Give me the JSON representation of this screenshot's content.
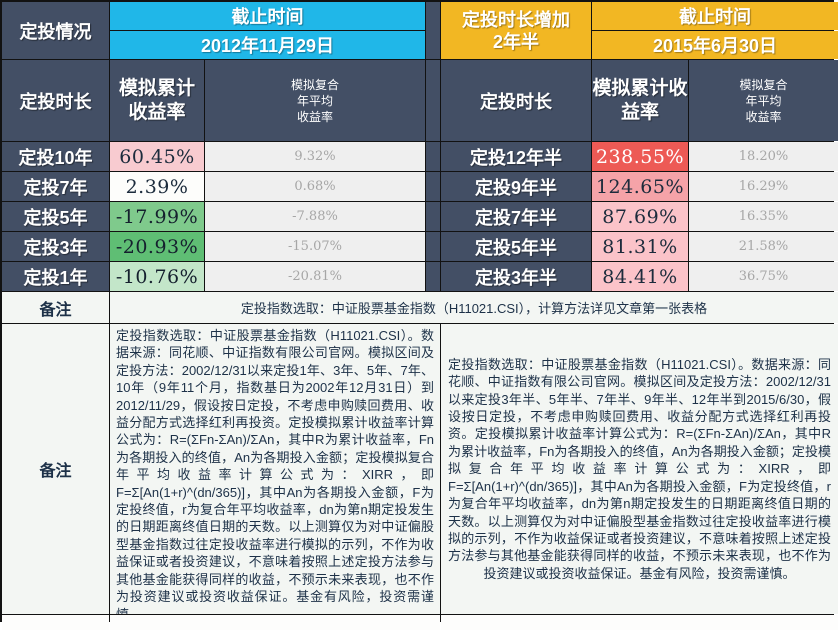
{
  "left_table": {
    "situation_label": "定投情况",
    "deadline_label": "截止时间",
    "deadline_value": "2012年11月29日",
    "duration_header": "定投时长",
    "cum_return_header": "模拟累计收益率",
    "compound_header": "模拟复合\n年平均\n收益率",
    "rows": [
      {
        "duration": "定投10年",
        "cum": "60.45%",
        "annual": "9.32%",
        "cum_bg": "#F8CBD0",
        "cum_color": "#1C2B3C"
      },
      {
        "duration": "定投7年",
        "cum": "2.39%",
        "annual": "0.68%",
        "cum_bg": "#FDFDFB",
        "cum_color": "#1C2B3C"
      },
      {
        "duration": "定投5年",
        "cum": "-17.99%",
        "annual": "-7.88%",
        "cum_bg": "#7FCA8C",
        "cum_color": "#15202E"
      },
      {
        "duration": "定投3年",
        "cum": "-20.93%",
        "annual": "-15.07%",
        "cum_bg": "#5FBE74",
        "cum_color": "#15202E"
      },
      {
        "duration": "定投1年",
        "cum": "-10.76%",
        "annual": "-20.81%",
        "cum_bg": "#C3E6C9",
        "cum_color": "#15202E"
      }
    ]
  },
  "right_table": {
    "increase_label": "定投时长增加\n2年半",
    "deadline_label": "截止时间",
    "deadline_value": "2015年6月30日",
    "duration_header": "定投时长",
    "cum_return_header": "模拟累计收益率",
    "compound_header": "模拟复合\n年平均\n收益率",
    "rows": [
      {
        "duration": "定投12年半",
        "cum": "238.55%",
        "annual": "18.20%",
        "cum_bg": "#ED5A55",
        "cum_color": "#FFFFFF"
      },
      {
        "duration": "定投9年半",
        "cum": "124.65%",
        "annual": "16.29%",
        "cum_bg": "#F5A3A8",
        "cum_color": "#1C2B3C"
      },
      {
        "duration": "定投7年半",
        "cum": "87.69%",
        "annual": "16.35%",
        "cum_bg": "#FBC3C9",
        "cum_color": "#1C2B3C"
      },
      {
        "duration": "定投5年半",
        "cum": "81.31%",
        "annual": "21.58%",
        "cum_bg": "#FBC3C9",
        "cum_color": "#1C2B3C"
      },
      {
        "duration": "定投3年半",
        "cum": "84.41%",
        "annual": "36.75%",
        "cum_bg": "#FBC3C9",
        "cum_color": "#1C2B3C"
      }
    ]
  },
  "notes": {
    "label": "备注",
    "summary": "定投指数选取：中证股票基金指数（H11021.CSI），计算方法详见文章第一张表格",
    "left_detail": "定投指数选取：中证股票基金指数（H11021.CSI）。数据来源：同花顺、中证指数有限公司官网。模拟区间及定投方法：2002/12/31以来定投1年、3年、5年、7年、10年（9年11个月，指数基日为2002年12月31日）到2012/11/29，假设按日定投，不考虑申购赎回费用、收益分配方式选择红利再投资。定投模拟累计收益率计算公式为：R=(ΣFn-ΣAn)/ΣAn，其中R为累计收益率，Fn为各期投入的终值，An为各期投入金额；定投模拟复合年平均收益率计算公式为：XIRR，即F=Σ[An(1+r)^(dn/365)]，其中An为各期投入金额，F为定投终值，r为复合年平均收益率，dn为第n期定投发生的日期距离终值日期的天数。以上测算仅为对中证偏股型基金指数过往定投收益率进行模拟的示列，不作为收益保证或者投资建议，不意味着按照上述定投方法参与其他基金能获得同样的收益，不预示未来表现，也不作为投资建议或投资收益保证。基金有风险，投资需谨慎。",
    "right_detail": "定投指数选取：中证股票基金指数（H11021.CSI）。数据来源：同花顺、中证指数有限公司官网。模拟区间及定投方法：2002/12/31以来定投3年半、5年半、7年半、9年半、12年半到2015/6/30，假设按日定投，不考虑申购赎回费用、收益分配方式选择红利再投资。定投模拟累计收益率计算公式为：R=(ΣFn-ΣAn)/ΣAn，其中R为累计收益率，Fn为各期投入的终值，An为各期投入金额；定投模拟复合年平均收益率计算公式为：XIRR，即F=Σ[An(1+r)^(dn/365)]，其中An为各期投入金额，F为定投终值，r为复合年平均收益率，dn为第n期定投发生的日期距离终值日期的天数。以上测算仅为对中证偏股型基金指数过往定投收益率进行模拟的示列，不作为收益保证或者投资建议，不意味着按照上述定投方法参与其他基金能获得同样的收益，不预示未来表现，也不作为投资建议或投资收益保证。基金有风险，投资需谨慎。"
  },
  "colors": {
    "header_dark": "#434F65",
    "cyan": "#20B7E8",
    "gold": "#F2B723",
    "note_bg": "#F3F6F3",
    "annual_bg": "#EFEFEF",
    "annual_text": "#A6A6A6",
    "red": "#ED5A55",
    "pink_light": "#FBC3C9",
    "green_dark": "#5FBE74",
    "green_mid": "#7FCA8C",
    "green_light": "#C3E6C9"
  },
  "chart_data": [
    {
      "type": "table",
      "title": "定投情况 截止时间 2012年11月29日",
      "columns": [
        "定投时长",
        "模拟累计收益率",
        "模拟复合年平均收益率"
      ],
      "rows": [
        [
          "定投10年",
          "60.45%",
          "9.32%"
        ],
        [
          "定投7年",
          "2.39%",
          "0.68%"
        ],
        [
          "定投5年",
          "-17.99%",
          "-7.88%"
        ],
        [
          "定投3年",
          "-20.93%",
          "-15.07%"
        ],
        [
          "定投1年",
          "-10.76%",
          "-20.81%"
        ]
      ]
    },
    {
      "type": "table",
      "title": "定投时长增加2年半 截止时间 2015年6月30日",
      "columns": [
        "定投时长",
        "模拟累计收益率",
        "模拟复合年平均收益率"
      ],
      "rows": [
        [
          "定投12年半",
          "238.55%",
          "18.20%"
        ],
        [
          "定投9年半",
          "124.65%",
          "16.29%"
        ],
        [
          "定投7年半",
          "87.69%",
          "16.35%"
        ],
        [
          "定投5年半",
          "81.31%",
          "21.58%"
        ],
        [
          "定投3年半",
          "84.41%",
          "36.75%"
        ]
      ]
    }
  ]
}
